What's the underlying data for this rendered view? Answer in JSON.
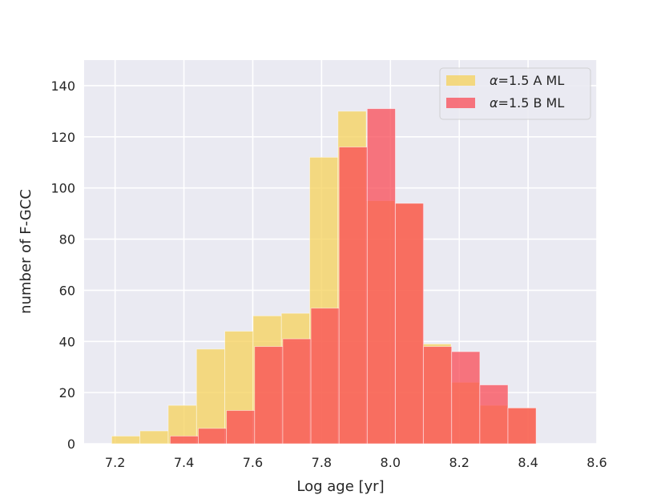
{
  "chart_data": {
    "type": "bar",
    "subtype": "overlapping-histogram",
    "xlabel": "Log age [yr]",
    "ylabel": "number of F-GCC",
    "xlim": [
      7.11,
      8.6
    ],
    "ylim": [
      0,
      150
    ],
    "xticks": [
      7.2,
      7.4,
      7.6,
      7.8,
      8.0,
      8.2,
      8.4,
      8.6
    ],
    "yticks": [
      0,
      20,
      40,
      60,
      80,
      100,
      120,
      140
    ],
    "grid": true,
    "legend_position": "top-right",
    "background_color": "#eaeaf2",
    "series": [
      {
        "name": "α=1.5 A ML",
        "legend_prefix": "α",
        "legend_suffix": "=1.5 A ML",
        "color": "#f5d25a",
        "alpha": 0.75,
        "bin_edges": [
          7.19,
          7.2722,
          7.3544,
          7.4366,
          7.5188,
          7.601,
          7.6832,
          7.7654,
          7.8476,
          7.9298,
          8.012,
          8.0942,
          8.1764,
          8.2586,
          8.3408,
          8.423
        ],
        "counts": [
          3,
          5,
          15,
          37,
          44,
          50,
          51,
          112,
          130,
          95,
          94,
          39,
          24,
          15,
          14
        ]
      },
      {
        "name": "α=1.5 B ML",
        "legend_prefix": "α",
        "legend_suffix": "=1.5 B ML",
        "color": "#f94b55",
        "alpha": 0.75,
        "bin_edges": [
          7.36,
          7.4418,
          7.5236,
          7.6054,
          7.6872,
          7.769,
          7.8508,
          7.9326,
          8.0144,
          8.0962,
          8.178,
          8.2598,
          8.3416,
          8.4234
        ],
        "counts": [
          3,
          6,
          13,
          38,
          41,
          53,
          116,
          131,
          94,
          38,
          36,
          23,
          14
        ]
      }
    ]
  }
}
